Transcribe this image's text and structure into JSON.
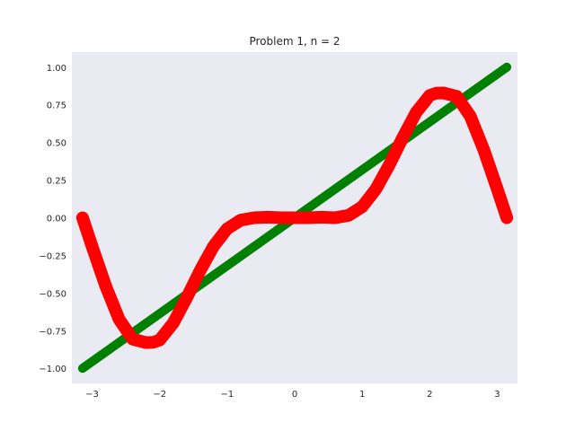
{
  "chart_data": {
    "type": "line",
    "title": "Problem 1, n = 2",
    "xlabel": "",
    "ylabel": "",
    "xlim": [
      -3.3,
      3.3
    ],
    "ylim": [
      -1.1,
      1.1
    ],
    "xticks": [
      -3,
      -2,
      -1,
      0,
      1,
      2,
      3
    ],
    "xtick_labels": [
      "−3",
      "−2",
      "−1",
      "0",
      "1",
      "2",
      "3"
    ],
    "yticks": [
      -1.0,
      -0.75,
      -0.5,
      -0.25,
      0.0,
      0.25,
      0.5,
      0.75,
      1.0
    ],
    "ytick_labels": [
      "−1.00",
      "−0.75",
      "−0.50",
      "−0.25",
      "0.00",
      "0.25",
      "0.50",
      "0.75",
      "1.00"
    ],
    "grid": false,
    "background_color": "#eaeaf2",
    "series": [
      {
        "color": "#008000",
        "marker": "line",
        "x": [
          -3.14159,
          3.14159
        ],
        "y": [
          -1.0,
          1.0
        ]
      },
      {
        "color": "#ff0000",
        "marker": "x",
        "x": [
          -3.14159,
          -3.0,
          -2.8,
          -2.6,
          -2.4,
          -2.2,
          -2.094,
          -2.0,
          -1.8,
          -1.6,
          -1.4,
          -1.2,
          -1.0,
          -0.8,
          -0.6,
          -0.4,
          -0.2,
          0.0,
          0.2,
          0.4,
          0.6,
          0.8,
          1.0,
          1.2,
          1.4,
          1.6,
          1.8,
          2.0,
          2.094,
          2.2,
          2.4,
          2.6,
          2.8,
          3.0,
          3.14159
        ],
        "y": [
          0.0,
          -0.191,
          -0.452,
          -0.675,
          -0.806,
          -0.829,
          -0.827,
          -0.812,
          -0.7,
          -0.532,
          -0.35,
          -0.188,
          -0.073,
          -0.016,
          0.0,
          0.004,
          0.0,
          0.0,
          0.0,
          0.004,
          0.0,
          0.016,
          0.073,
          0.188,
          0.35,
          0.532,
          0.7,
          0.812,
          0.827,
          0.829,
          0.806,
          0.675,
          0.452,
          0.191,
          0.0
        ]
      }
    ]
  }
}
